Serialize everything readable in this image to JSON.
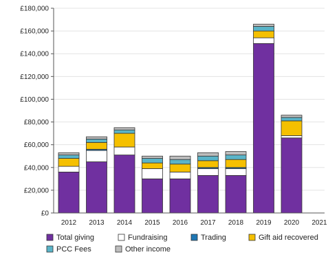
{
  "chart_data": {
    "type": "bar",
    "stacked": true,
    "title": "",
    "xlabel": "",
    "ylabel": "",
    "ylim": [
      0,
      180000
    ],
    "y_ticks": [
      0,
      20000,
      40000,
      60000,
      80000,
      100000,
      120000,
      140000,
      160000,
      180000
    ],
    "y_tick_labels": [
      "£0",
      "£20,000",
      "£40,000",
      "£60,000",
      "£80,000",
      "£100,000",
      "£120,000",
      "£140,000",
      "£160,000",
      "£180,000"
    ],
    "categories": [
      "2012",
      "2013",
      "2014",
      "2015",
      "2016",
      "2017",
      "2018",
      "2019",
      "2020",
      "2021"
    ],
    "legend_position": "bottom",
    "series": [
      {
        "name": "Total giving",
        "color": "#7030a0",
        "values": [
          36000,
          45000,
          51000,
          30000,
          30000,
          33000,
          33000,
          149000,
          66000,
          0
        ]
      },
      {
        "name": "Fundraising",
        "color": "#ffffff",
        "values": [
          5000,
          10000,
          7000,
          9000,
          6000,
          6000,
          6000,
          5000,
          2000,
          0
        ]
      },
      {
        "name": "Trading",
        "color": "#1f77b4",
        "values": [
          0,
          1000,
          0,
          0,
          0,
          1000,
          1000,
          0,
          0,
          0
        ]
      },
      {
        "name": "Gift aid recovered",
        "color": "#f5c000",
        "values": [
          7000,
          6000,
          12000,
          5000,
          7000,
          6000,
          7000,
          6000,
          13000,
          0
        ]
      },
      {
        "name": "PCC Fees",
        "color": "#5ab4c8",
        "values": [
          3000,
          3000,
          3000,
          4000,
          4000,
          4000,
          4000,
          4000,
          3000,
          0
        ]
      },
      {
        "name": "Other income",
        "color": "#bdbdbd",
        "values": [
          2000,
          2000,
          2000,
          2000,
          3000,
          3000,
          3000,
          2000,
          2000,
          0
        ]
      }
    ]
  }
}
